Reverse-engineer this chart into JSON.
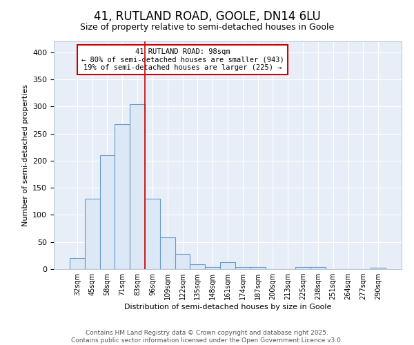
{
  "title": "41, RUTLAND ROAD, GOOLE, DN14 6LU",
  "subtitle": "Size of property relative to semi-detached houses in Goole",
  "xlabel": "Distribution of semi-detached houses by size in Goole",
  "ylabel": "Number of semi-detached properties",
  "bin_labels": [
    "32sqm",
    "45sqm",
    "58sqm",
    "71sqm",
    "83sqm",
    "96sqm",
    "109sqm",
    "122sqm",
    "135sqm",
    "148sqm",
    "161sqm",
    "174sqm",
    "187sqm",
    "200sqm",
    "213sqm",
    "225sqm",
    "238sqm",
    "251sqm",
    "264sqm",
    "277sqm",
    "290sqm"
  ],
  "bar_heights": [
    20,
    130,
    210,
    267,
    304,
    130,
    58,
    28,
    9,
    4,
    13,
    4,
    4,
    0,
    0,
    4,
    4,
    0,
    0,
    0,
    3
  ],
  "bar_color": "#dce8f5",
  "bar_edgecolor": "#6699cc",
  "background_color": "#ffffff",
  "plot_bg_color": "#e8eef8",
  "grid_color": "#ffffff",
  "property_line_x": 5.0,
  "annotation_text": "41 RUTLAND ROAD: 98sqm\n← 80% of semi-detached houses are smaller (943)\n19% of semi-detached houses are larger (225) →",
  "annotation_box_color": "#ffffff",
  "annotation_box_edgecolor": "#cc0000",
  "vline_color": "#cc0000",
  "footer_line1": "Contains HM Land Registry data © Crown copyright and database right 2025.",
  "footer_line2": "Contains public sector information licensed under the Open Government Licence v3.0.",
  "ylim": [
    0,
    420
  ],
  "yticks": [
    0,
    50,
    100,
    150,
    200,
    250,
    300,
    350,
    400
  ],
  "title_fontsize": 12,
  "subtitle_fontsize": 9,
  "footer_fontsize": 6.5
}
